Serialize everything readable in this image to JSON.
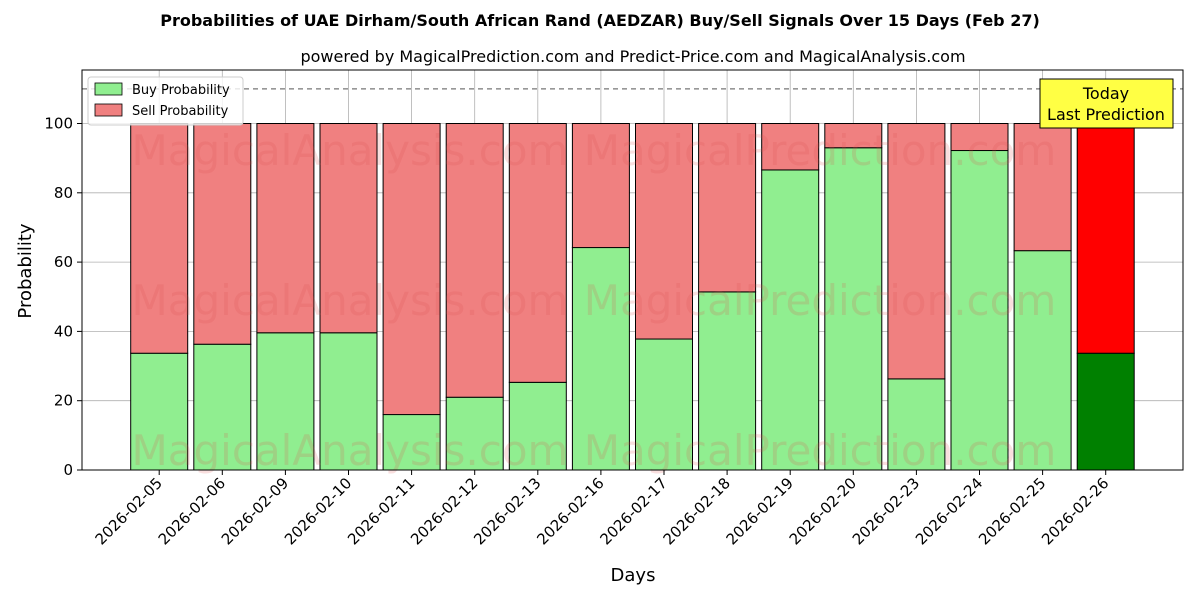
{
  "chart_data": {
    "type": "bar",
    "stacked": true,
    "title": "Probabilities of UAE Dirham/South African Rand (AEDZAR) Buy/Sell Signals Over 15 Days (Feb 27)",
    "subtitle": "powered by MagicalPrediction.com and Predict-Price.com and MagicalAnalysis.com",
    "xlabel": "Days",
    "ylabel": "Probability",
    "ylim": [
      0,
      115
    ],
    "yticks": [
      0,
      20,
      40,
      60,
      80,
      100
    ],
    "reference_line": 110,
    "grid": true,
    "legend_position": "top-left",
    "categories": [
      "2026-02-05",
      "2026-02-06",
      "2026-02-09",
      "2026-02-10",
      "2026-02-11",
      "2026-02-12",
      "2026-02-13",
      "2026-02-16",
      "2026-02-17",
      "2026-02-18",
      "2026-02-19",
      "2026-02-20",
      "2026-02-23",
      "2026-02-24",
      "2026-02-25",
      "2026-02-26"
    ],
    "series": [
      {
        "name": "Buy Probability",
        "color": "#90ee90",
        "highlight_color": "#008000",
        "values": [
          33.7,
          36.3,
          39.6,
          39.6,
          16.0,
          21.0,
          25.3,
          64.2,
          37.8,
          51.4,
          86.6,
          93.0,
          26.3,
          92.2,
          63.3,
          33.7
        ]
      },
      {
        "name": "Sell Probability",
        "color": "#f08080",
        "highlight_color": "#ff0000",
        "values": [
          66.3,
          63.7,
          60.4,
          60.4,
          84.0,
          79.0,
          74.7,
          35.8,
          62.2,
          48.6,
          13.4,
          7.0,
          73.7,
          7.8,
          36.7,
          66.3
        ]
      }
    ],
    "annotation": {
      "lines": [
        "Today",
        "Last Prediction"
      ],
      "bg_color": "#ffff44"
    },
    "watermarks": [
      "MagicalAnalysis.com",
      "MagicalPrediction.com"
    ]
  }
}
